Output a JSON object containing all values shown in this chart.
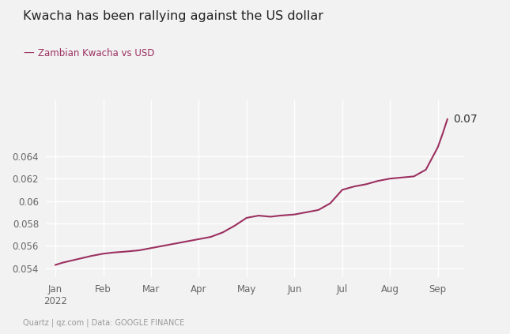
{
  "title": "Kwacha has been rallying against the US dollar",
  "legend_label": "Zambian Kwacha vs USD",
  "line_color": "#9b3060",
  "annotation_text": "0.07",
  "background_color": "#f2f2f2",
  "plot_background_color": "#f2f2f2",
  "x_tick_labels": [
    "Jan\n2022",
    "Feb",
    "Mar",
    "Apr",
    "May",
    "Jun",
    "Jul",
    "Aug",
    "Sep"
  ],
  "x_tick_positions": [
    0,
    1,
    2,
    3,
    4,
    5,
    6,
    7,
    8
  ],
  "y_ticks": [
    0.054,
    0.056,
    0.058,
    0.06,
    0.062,
    0.064
  ],
  "ylim": [
    0.0532,
    0.069
  ],
  "xlim": [
    -0.2,
    8.55
  ],
  "footnote": "Quartz | qz.com | Data: GOOGLE FINANCE",
  "data_x": [
    0.0,
    0.15,
    0.35,
    0.55,
    0.75,
    1.0,
    1.2,
    1.5,
    1.75,
    2.0,
    2.25,
    2.5,
    2.75,
    3.0,
    3.25,
    3.5,
    3.75,
    4.0,
    4.25,
    4.5,
    4.7,
    5.0,
    5.25,
    5.5,
    5.75,
    6.0,
    6.25,
    6.5,
    6.75,
    7.0,
    7.25,
    7.5,
    7.75,
    8.0,
    8.1,
    8.2
  ],
  "data_y": [
    0.0543,
    0.0545,
    0.0547,
    0.0549,
    0.0551,
    0.0553,
    0.0554,
    0.0555,
    0.0556,
    0.0558,
    0.056,
    0.0562,
    0.0564,
    0.0566,
    0.0568,
    0.0572,
    0.0578,
    0.0585,
    0.0587,
    0.0586,
    0.0587,
    0.0588,
    0.059,
    0.0592,
    0.0598,
    0.061,
    0.0613,
    0.0615,
    0.0618,
    0.062,
    0.0621,
    0.0622,
    0.0628,
    0.0648,
    0.066,
    0.0673
  ]
}
